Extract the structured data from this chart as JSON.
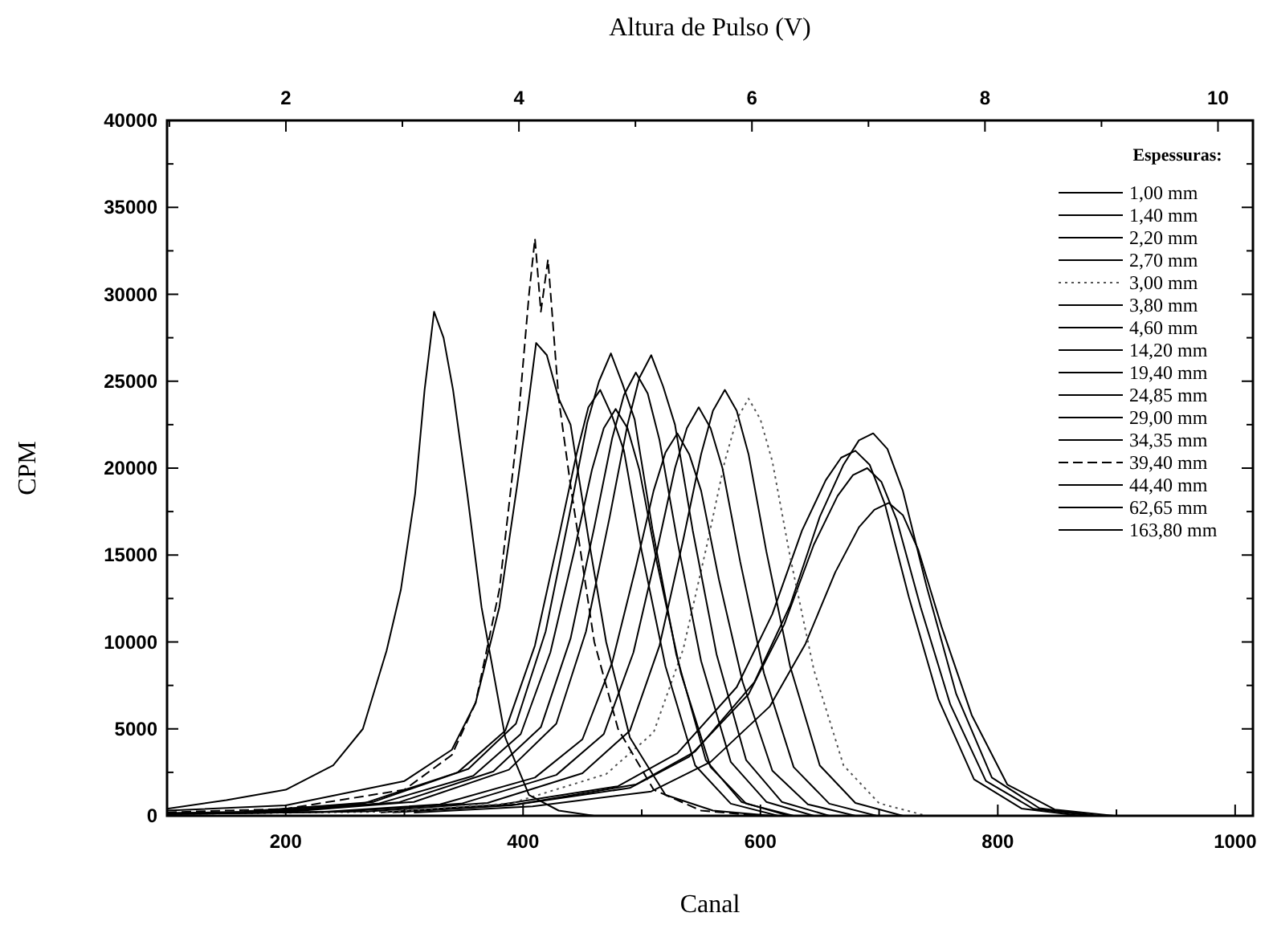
{
  "chart_data": {
    "type": "line",
    "xlabel": "Canal",
    "ylabel": "CPM",
    "x2label": "Altura de Pulso (V)",
    "legend_title": "Espessuras:",
    "legend": "top right",
    "grid": false,
    "marker": "none",
    "xlim": [
      100,
      1015
    ],
    "xticks": [
      {
        "value": 100,
        "label": null
      },
      200,
      {
        "value": 300,
        "label": null
      },
      400,
      {
        "value": 500,
        "label": null
      },
      600,
      {
        "value": 700,
        "label": null
      },
      800,
      {
        "value": 900,
        "label": null
      },
      1000
    ],
    "x2lim": [
      0.98,
      10.3
    ],
    "x2ticks": [
      {
        "value": 1,
        "label": null
      },
      2,
      {
        "value": 3,
        "label": null
      },
      4,
      {
        "value": 5,
        "label": null
      },
      6,
      {
        "value": 7,
        "label": null
      },
      8,
      {
        "value": 9,
        "label": null
      },
      10
    ],
    "ylim": [
      0,
      40000
    ],
    "yticks": [
      0,
      {
        "value": 2500,
        "label": null
      },
      5000,
      {
        "value": 7500,
        "label": null
      },
      10000,
      {
        "value": 12500,
        "label": null
      },
      15000,
      {
        "value": 17500,
        "label": null
      },
      20000,
      {
        "value": 22500,
        "label": null
      },
      25000,
      {
        "value": 27500,
        "label": null
      },
      30000,
      {
        "value": 32500,
        "label": null
      },
      35000,
      {
        "value": 37500,
        "label": null
      },
      40000
    ],
    "series": [
      {
        "name": "1,00 mm",
        "color": "#000000",
        "line_style": "solid",
        "x": [
          308,
          408,
          508,
          558,
          608,
          638,
          663,
          683,
          696,
          708,
          720,
          733,
          753,
          778,
          808,
          848,
          898
        ],
        "values": [
          180,
          540,
          1400,
          3100,
          6300,
          9900,
          14000,
          16600,
          17600,
          18000,
          17300,
          15300,
          10800,
          5800,
          1800,
          360,
          0
        ]
      },
      {
        "name": "1,40 mm",
        "color": "#000000",
        "line_style": "solid",
        "x": [
          290,
          390,
          490,
          540,
          590,
          620,
          645,
          665,
          678,
          690,
          702,
          715,
          735,
          760,
          790,
          830,
          880
        ],
        "values": [
          200,
          600,
          1600,
          3400,
          7000,
          11000,
          15600,
          18400,
          19600,
          20000,
          19200,
          17000,
          12000,
          6400,
          2000,
          400,
          0
        ]
      },
      {
        "name": "2,20 mm",
        "color": "#000000",
        "line_style": "solid",
        "x": [
          295,
          395,
          495,
          545,
          595,
          625,
          650,
          670,
          683,
          695,
          707,
          720,
          740,
          765,
          795,
          835,
          885
        ],
        "values": [
          220,
          660,
          1800,
          3700,
          7700,
          12100,
          17200,
          20200,
          21600,
          22000,
          21100,
          18700,
          13200,
          7000,
          2200,
          440,
          0
        ]
      },
      {
        "name": "2,70 mm",
        "color": "#000000",
        "line_style": "solid",
        "x": [
          280,
          380,
          480,
          530,
          580,
          610,
          635,
          655,
          668,
          680,
          692,
          705,
          725,
          750,
          780,
          820,
          870
        ],
        "values": [
          200,
          630,
          1700,
          3600,
          7400,
          11600,
          16400,
          19300,
          20600,
          21000,
          20200,
          17900,
          12600,
          6700,
          2100,
          420,
          0
        ]
      },
      {
        "name": "3,00 mm",
        "color": "#555555",
        "line_style": "dotted",
        "x": [
          100,
          290,
          390,
          470,
          510,
          535,
          555,
          570,
          580,
          590,
          600,
          610,
          625,
          645,
          670,
          700,
          740
        ],
        "values": [
          100,
          240,
          720,
          2400,
          4800,
          9600,
          15600,
          20400,
          22800,
          24000,
          22800,
          20400,
          14900,
          8400,
          2900,
          720,
          0
        ]
      },
      {
        "name": "3,80 mm",
        "color": "#000000",
        "line_style": "solid",
        "x": [
          100,
          270,
          370,
          450,
          490,
          515,
          535,
          550,
          560,
          570,
          580,
          590,
          605,
          625,
          650,
          680,
          720
        ],
        "values": [
          100,
          250,
          740,
          2450,
          4900,
          9800,
          15900,
          20800,
          23300,
          24500,
          23300,
          20800,
          15200,
          8600,
          2900,
          740,
          0
        ]
      },
      {
        "name": "4,60 mm",
        "color": "#000000",
        "line_style": "solid",
        "x": [
          100,
          248,
          348,
          428,
          468,
          493,
          513,
          528,
          538,
          548,
          558,
          568,
          583,
          603,
          628,
          658,
          698
        ],
        "values": [
          100,
          240,
          700,
          2350,
          4700,
          9400,
          15300,
          20000,
          22300,
          23500,
          22300,
          20000,
          14600,
          8200,
          2800,
          700,
          0
        ]
      },
      {
        "name": "14,20 mm",
        "color": "#000000",
        "line_style": "solid",
        "x": [
          100,
          230,
          330,
          410,
          450,
          475,
          495,
          510,
          520,
          530,
          540,
          550,
          565,
          585,
          610,
          640,
          680
        ],
        "values": [
          100,
          220,
          660,
          2200,
          4400,
          8800,
          14300,
          18700,
          20900,
          22000,
          20800,
          18700,
          13600,
          7700,
          2600,
          660,
          0
        ]
      },
      {
        "name": "19,40 mm",
        "color": "#000000",
        "line_style": "solid",
        "x": [
          100,
          208,
          308,
          388,
          428,
          453,
          473,
          488,
          498,
          508,
          518,
          528,
          543,
          563,
          588,
          618,
          658
        ],
        "values": [
          150,
          270,
          800,
          2650,
          5300,
          10600,
          17200,
          22500,
          25200,
          26500,
          24700,
          22500,
          16400,
          9300,
          3200,
          800,
          0
        ]
      },
      {
        "name": "24,85 mm",
        "color": "#000000",
        "line_style": "solid",
        "x": [
          100,
          195,
          295,
          375,
          415,
          440,
          460,
          475,
          485,
          495,
          505,
          515,
          530,
          550,
          575,
          605,
          645
        ],
        "values": [
          150,
          250,
          770,
          2550,
          5100,
          10200,
          16600,
          21700,
          24200,
          25500,
          24300,
          21600,
          15800,
          8900,
          3100,
          800,
          0
        ]
      },
      {
        "name": "29,00 mm",
        "color": "#000000",
        "line_style": "solid",
        "x": [
          178,
          278,
          358,
          398,
          423,
          443,
          458,
          468,
          478,
          488,
          498,
          513,
          533,
          558,
          588,
          628
        ],
        "values": [
          230,
          700,
          2300,
          4700,
          9400,
          15200,
          19900,
          22300,
          23400,
          22300,
          19900,
          14500,
          8200,
          2800,
          700,
          0
        ]
      },
      {
        "name": "34,35 mm",
        "color": "#000000",
        "line_style": "solid",
        "x": [
          100,
          200,
          300,
          340,
          360,
          380,
          395,
          405,
          411,
          420,
          430,
          440,
          455,
          470,
          490,
          520,
          560,
          610
        ],
        "values": [
          300,
          600,
          2000,
          3800,
          6500,
          12000,
          19000,
          24000,
          27200,
          26500,
          24000,
          22500,
          16000,
          10000,
          4500,
          1200,
          300,
          0
        ]
      },
      {
        "name": "39,40 mm",
        "color": "#000000",
        "line_style": "dashed",
        "x": [
          100,
          200,
          300,
          340,
          360,
          380,
          395,
          405,
          410,
          415,
          421,
          430,
          440,
          460,
          480,
          510,
          550,
          600
        ],
        "values": [
          200,
          400,
          1500,
          3500,
          6500,
          13000,
          22000,
          30000,
          33200,
          29000,
          32000,
          24000,
          19000,
          10000,
          5000,
          1500,
          300,
          0
        ]
      },
      {
        "name": "44,40 mm",
        "color": "#000000",
        "line_style": "solid",
        "x": [
          174,
          274,
          354,
          394,
          419,
          439,
          454,
          464,
          474,
          484,
          494,
          509,
          529,
          554,
          584,
          624
        ],
        "values": [
          270,
          800,
          2700,
          5300,
          10600,
          17300,
          22600,
          25000,
          26600,
          24800,
          22800,
          16500,
          9300,
          3200,
          800,
          0
        ]
      },
      {
        "name": "62,65 mm",
        "color": "#000000",
        "line_style": "solid",
        "x": [
          165,
          265,
          345,
          385,
          410,
          430,
          445,
          455,
          465,
          475,
          485,
          500,
          520,
          545,
          575,
          615
        ],
        "values": [
          250,
          700,
          2500,
          4900,
          9800,
          16000,
          20800,
          23500,
          24500,
          23000,
          21000,
          15200,
          8600,
          2900,
          700,
          0
        ]
      },
      {
        "name": "163,80 mm",
        "color": "#000000",
        "line_style": "solid",
        "x": [
          100,
          150,
          200,
          240,
          265,
          285,
          297,
          309,
          317,
          325,
          333,
          341,
          353,
          365,
          385,
          405,
          430,
          460
        ],
        "values": [
          400,
          900,
          1500,
          2900,
          5000,
          9500,
          13000,
          18500,
          24500,
          29000,
          27500,
          24500,
          18500,
          12000,
          4500,
          1200,
          300,
          0
        ]
      }
    ]
  }
}
